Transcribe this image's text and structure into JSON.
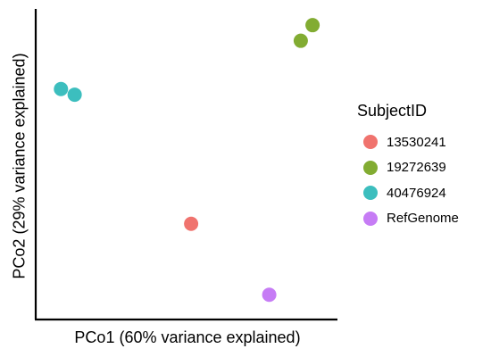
{
  "chart_data": {
    "type": "scatter",
    "title": "",
    "xlabel": "PCo1 (60% variance explained)",
    "ylabel": "PCo2 (29% variance explained)",
    "xlim": [
      0,
      1
    ],
    "ylim": [
      0,
      1
    ],
    "legend_title": "SubjectID",
    "legend_position": "right",
    "series": [
      {
        "name": "13530241",
        "color": "#F0736E",
        "points": [
          {
            "x": 0.515,
            "y": 0.29
          }
        ]
      },
      {
        "name": "19272639",
        "color": "#82AC32",
        "points": [
          {
            "x": 0.915,
            "y": 0.935
          },
          {
            "x": 0.958,
            "y": 0.99
          }
        ]
      },
      {
        "name": "40476924",
        "color": "#3CBEBE",
        "points": [
          {
            "x": 0.04,
            "y": 0.765
          },
          {
            "x": 0.09,
            "y": 0.745
          }
        ]
      },
      {
        "name": "RefGenome",
        "color": "#C67CF5",
        "points": [
          {
            "x": 0.8,
            "y": 0.04
          }
        ]
      }
    ]
  }
}
